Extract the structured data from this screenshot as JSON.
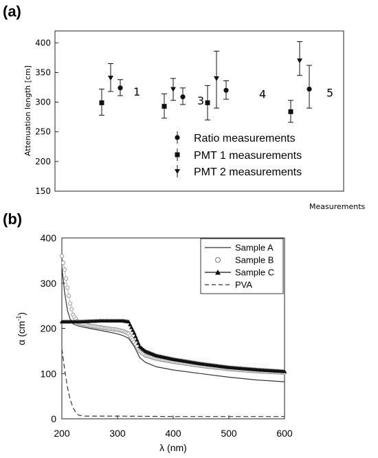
{
  "chart_data": [
    {
      "panel": "(a)",
      "type": "scatter",
      "ylabel": "Attenuation length [cm]",
      "xlabel": "Measurements",
      "ylim": [
        150,
        420
      ],
      "yticks": [
        150,
        200,
        250,
        300,
        350,
        400
      ],
      "groups": [
        {
          "label": "1",
          "points": [
            {
              "series": "PMT 1 measurements",
              "y": 299,
              "low": 278,
              "high": 322
            },
            {
              "series": "PMT 2 measurements",
              "y": 341,
              "low": 318,
              "high": 365
            },
            {
              "series": "Ratio measurements",
              "y": 324,
              "low": 311,
              "high": 338
            }
          ]
        },
        {
          "label": "3",
          "points": [
            {
              "series": "PMT 1 measurements",
              "y": 293,
              "low": 273,
              "high": 314
            },
            {
              "series": "PMT 2 measurements",
              "y": 322,
              "low": 303,
              "high": 340
            },
            {
              "series": "Ratio measurements",
              "y": 309,
              "low": 296,
              "high": 324
            }
          ]
        },
        {
          "label": "4",
          "points": [
            {
              "series": "PMT 1 measurements",
              "y": 299,
              "low": 270,
              "high": 328
            },
            {
              "series": "PMT 2 measurements",
              "y": 340,
              "low": 290,
              "high": 386
            },
            {
              "series": "Ratio measurements",
              "y": 320,
              "low": 305,
              "high": 336
            }
          ]
        },
        {
          "label": "5",
          "points": [
            {
              "series": "PMT 1 measurements",
              "y": 284,
              "low": 266,
              "high": 303
            },
            {
              "series": "PMT 2 measurements",
              "y": 370,
              "low": 345,
              "high": 402
            },
            {
              "series": "Ratio measurements",
              "y": 322,
              "low": 290,
              "high": 362
            }
          ]
        }
      ],
      "legend": [
        "Ratio measurements",
        "PMT 1 measurements",
        "PMT 2 measurements"
      ]
    },
    {
      "panel": "(b)",
      "type": "line",
      "xlabel": "λ (nm)",
      "ylabel_main": "α (cm",
      "ylabel_sup": "-1",
      "ylabel_end": ")",
      "xlim": [
        200,
        600
      ],
      "ylim": [
        0,
        400
      ],
      "xticks": [
        200,
        300,
        400,
        500,
        600
      ],
      "yticks": [
        0,
        100,
        200,
        300,
        400
      ],
      "legend_position": "top-right",
      "series": [
        {
          "name": "Sample A",
          "style": "solid",
          "points": [
            [
              200,
              335
            ],
            [
              205,
              280
            ],
            [
              210,
              240
            ],
            [
              215,
              220
            ],
            [
              220,
              210
            ],
            [
              230,
              205
            ],
            [
              250,
              200
            ],
            [
              280,
              193
            ],
            [
              300,
              188
            ],
            [
              310,
              184
            ],
            [
              320,
              178
            ],
            [
              330,
              160
            ],
            [
              340,
              135
            ],
            [
              350,
              125
            ],
            [
              370,
              115
            ],
            [
              400,
              108
            ],
            [
              450,
              100
            ],
            [
              500,
              92
            ],
            [
              550,
              86
            ],
            [
              600,
              82
            ]
          ]
        },
        {
          "name": "Sample B",
          "style": "open-circle",
          "points": [
            [
              200,
              360
            ],
            [
              205,
              330
            ],
            [
              210,
              290
            ],
            [
              215,
              255
            ],
            [
              220,
              230
            ],
            [
              230,
              212
            ],
            [
              250,
              206
            ],
            [
              280,
              200
            ],
            [
              300,
              197
            ],
            [
              310,
              194
            ],
            [
              320,
              188
            ],
            [
              330,
              170
            ],
            [
              340,
              150
            ],
            [
              350,
              140
            ],
            [
              370,
              133
            ],
            [
              400,
              126
            ],
            [
              450,
              117
            ],
            [
              500,
              110
            ],
            [
              550,
              105
            ],
            [
              600,
              102
            ]
          ]
        },
        {
          "name": "Sample C",
          "style": "filled-triangle",
          "points": [
            [
              200,
              215
            ],
            [
              210,
              215
            ],
            [
              230,
              215
            ],
            [
              250,
              216
            ],
            [
              270,
              217
            ],
            [
              290,
              217
            ],
            [
              300,
              217
            ],
            [
              310,
              217
            ],
            [
              320,
              215
            ],
            [
              330,
              190
            ],
            [
              340,
              160
            ],
            [
              350,
              150
            ],
            [
              370,
              140
            ],
            [
              400,
              132
            ],
            [
              450,
              122
            ],
            [
              500,
              114
            ],
            [
              550,
              109
            ],
            [
              600,
              105
            ]
          ]
        },
        {
          "name": "PVA",
          "style": "dashed",
          "points": [
            [
              200,
              155
            ],
            [
              205,
              110
            ],
            [
              210,
              70
            ],
            [
              215,
              42
            ],
            [
              220,
              25
            ],
            [
              225,
              14
            ],
            [
              230,
              8
            ],
            [
              240,
              6
            ],
            [
              260,
              6
            ],
            [
              300,
              6
            ],
            [
              400,
              5
            ],
            [
              500,
              5
            ],
            [
              600,
              5
            ]
          ]
        }
      ]
    }
  ]
}
